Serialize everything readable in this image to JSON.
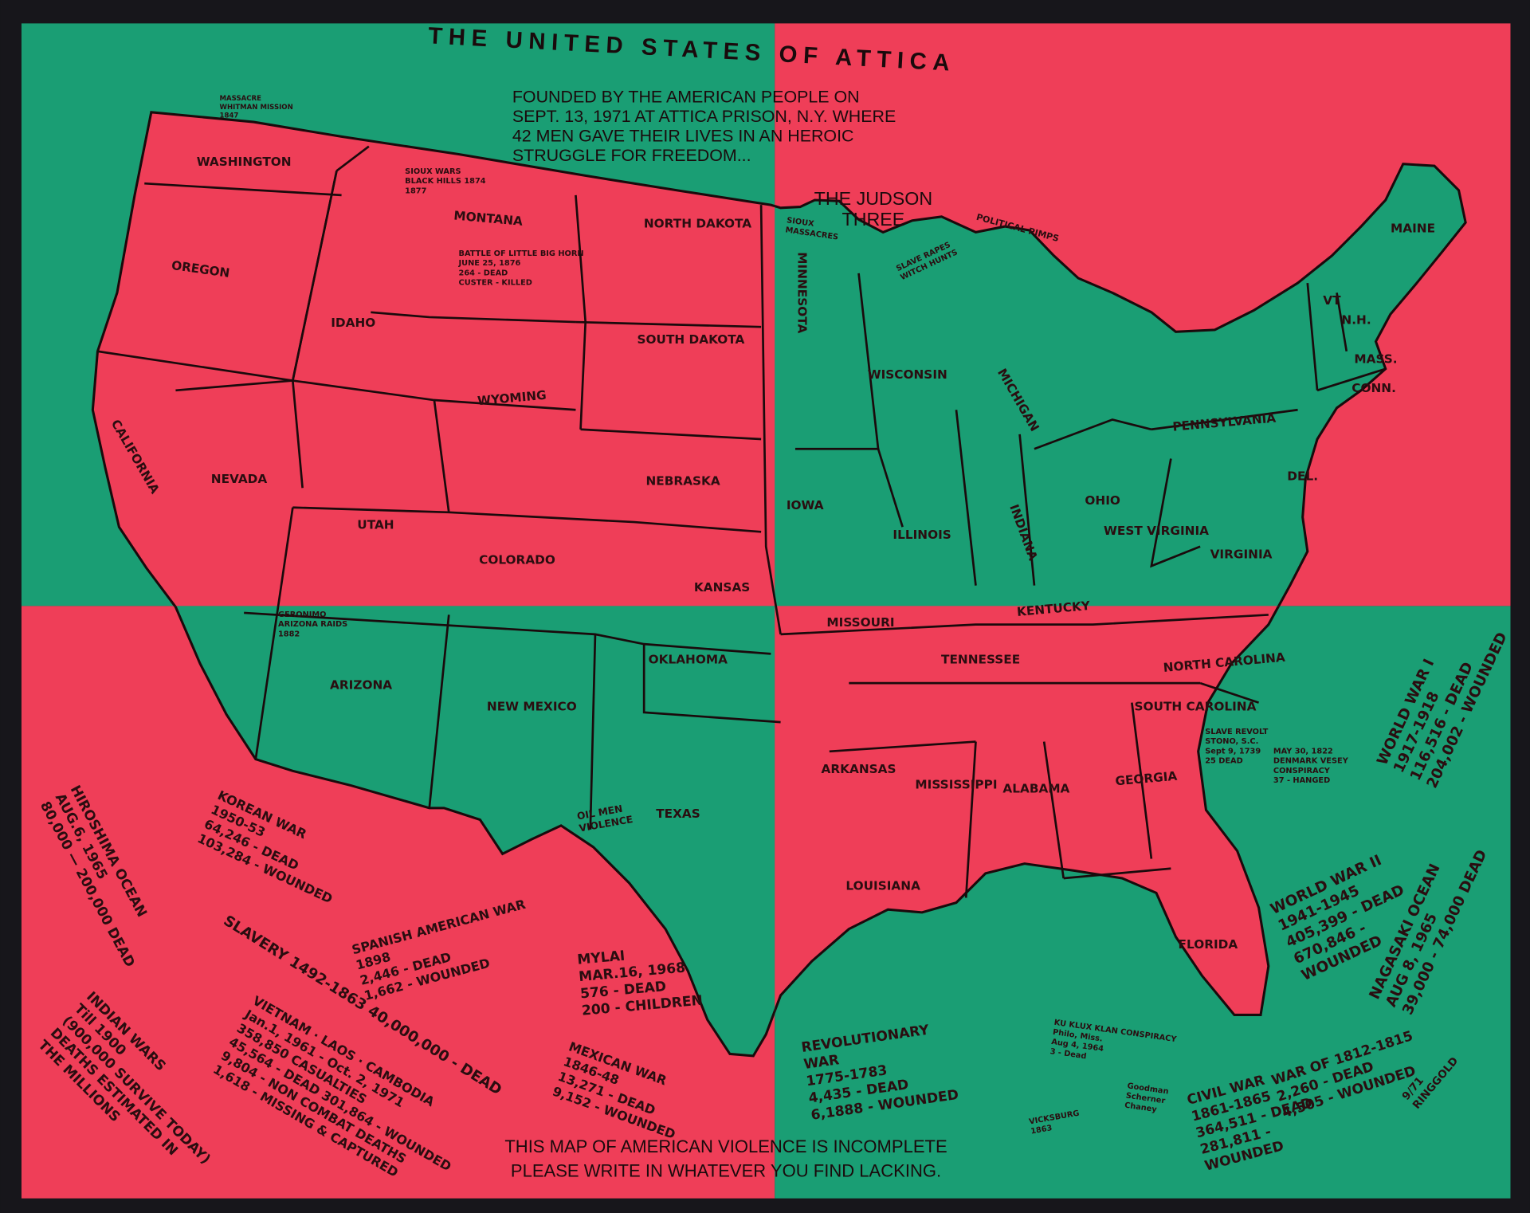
{
  "colors": {
    "green": "#1a9e74",
    "red": "#ef3e58",
    "ink": "#2a0d10",
    "background": "#17161b"
  },
  "title": "THE UNITED STATES OF ATTICA",
  "subtitle": [
    "FOUNDED BY THE AMERICAN PEOPLE ON",
    "SEPT. 13, 1971 AT ATTICA PRISON, N.Y. WHERE",
    "42 MEN GAVE THEIR LIVES IN AN HEROIC",
    "STRUGGLE FOR FREEDOM..."
  ],
  "judson": [
    "THE JUDSON",
    "THREE"
  ],
  "footer": [
    "THIS MAP OF AMERICAN VIOLENCE IS INCOMPLETE",
    "PLEASE WRITE IN WHATEVER YOU FIND LACKING."
  ],
  "states": [
    "WASHINGTON",
    "OREGON",
    "CALIFORNIA",
    "NEVADA",
    "IDAHO",
    "MONTANA",
    "WYOMING",
    "UTAH",
    "COLORADO",
    "ARIZONA",
    "NEW MEXICO",
    "TEXAS",
    "OKLAHOMA",
    "KANSAS",
    "NEBRASKA",
    "SOUTH DAKOTA",
    "NORTH DAKOTA",
    "MINNESOTA",
    "IOWA",
    "WISCONSIN",
    "ILLINOIS",
    "INDIANA",
    "OHIO",
    "MICHIGAN",
    "MISSOURI",
    "ARKANSAS",
    "LOUISIANA",
    "MISSISSIPPI",
    "ALABAMA",
    "GEORGIA",
    "FLORIDA",
    "SOUTH CAROLINA",
    "NORTH CAROLINA",
    "VIRGINIA",
    "WEST VIRGINIA",
    "KENTUCKY",
    "TENNESSEE",
    "PENNSYLVANIA",
    "MAINE",
    "VT",
    "N.H.",
    "MASS.",
    "CONN.",
    "DEL."
  ],
  "annotations": [
    [
      "KOREAN WAR",
      "1950-53",
      "64,246 - DEAD",
      "103,284 - WOUNDED"
    ],
    [
      "HIROSHIMA OCEAN",
      "AUG.6, 1965",
      "80,000 — 200,000 DEAD"
    ],
    [
      "SLAVERY 1492-1863     40,000,000 - DEAD"
    ],
    [
      "VIETNAM · LAOS · CAMBODIA",
      "Jan.1, 1961 - Oct. 2, 1971",
      "358,850 CASUALTIES",
      "45,564 - DEAD   301,864 - WOUNDED",
      "9,804 - NON COMBAT DEATHS",
      "1,618 - MISSING & CAPTURED"
    ],
    [
      "INDIAN WARS",
      "Till 1900",
      "(900,000 SURVIVE TODAY)",
      "DEATHS ESTIMATED IN",
      "THE MILLIONS"
    ],
    [
      "SPANISH AMERICAN WAR",
      "1898",
      "2,446 - DEAD",
      "1,662 - WOUNDED"
    ],
    [
      "MYLAI",
      "MAR.16, 1968",
      "576 - DEAD",
      "200 - CHILDREN"
    ],
    [
      "MEXICAN WAR",
      "1846-48",
      "13,271 - DEAD",
      "9,152 - WOUNDED"
    ],
    [
      "REVOLUTIONARY",
      "WAR",
      "1775-1783",
      "4,435 - DEAD",
      "6,1888 - WOUNDED"
    ],
    [
      "CIVIL WAR",
      "1861-1865",
      "364,511 - DEAD",
      "281,811 -",
      "WOUNDED"
    ],
    [
      "WAR OF 1812-1815",
      "2,260 - DEAD",
      "4,505 - WOUNDED"
    ],
    [
      "WORLD WAR II",
      "1941-1945",
      "405,399 - DEAD",
      "670,846 -",
      "WOUNDED"
    ],
    [
      "NAGASAKI OCEAN",
      "AUG 8, 1965",
      "39,000 - 74,000 DEAD"
    ],
    [
      "WORLD WAR I",
      "1917-1918",
      "116,516 - DEAD",
      "204,002 - WOUNDED"
    ],
    [
      "OIL MEN",
      "VIOLENCE"
    ],
    [
      "SIOUX",
      "MASSACRES"
    ],
    [
      "POLITICAL PIMPS"
    ],
    [
      "SLAVE RAPES",
      "WITCH HUNTS"
    ],
    [
      "KU KLUX KLAN CONSPIRACY",
      "Philo, Miss.",
      "Aug 4, 1964",
      "3 - Dead"
    ],
    [
      "Goodman",
      "Scherner",
      "Chaney"
    ],
    [
      "VICKSBURG",
      "1863"
    ],
    [
      "SIOUX WARS",
      "BLACK HILLS 1874",
      "1877"
    ],
    [
      "BATTLE OF LITTLE BIG HORN",
      "JUNE 25, 1876",
      "264 - DEAD",
      "CUSTER - KILLED"
    ],
    [
      "SLAVE REVOLT",
      "STONO, S.C.",
      "Sept 9, 1739",
      "25 DEAD"
    ],
    [
      "MAY 30, 1822",
      "DENMARK VESEY",
      "CONSPIRACY",
      "37 - HANGED"
    ],
    [
      "GERONIMO",
      "ARIZONA RAIDS",
      "1882"
    ],
    [
      "MASSACRE",
      "WHITMAN MISSION",
      "1847"
    ]
  ],
  "signature": [
    "9/71",
    "RINGGOLD"
  ]
}
